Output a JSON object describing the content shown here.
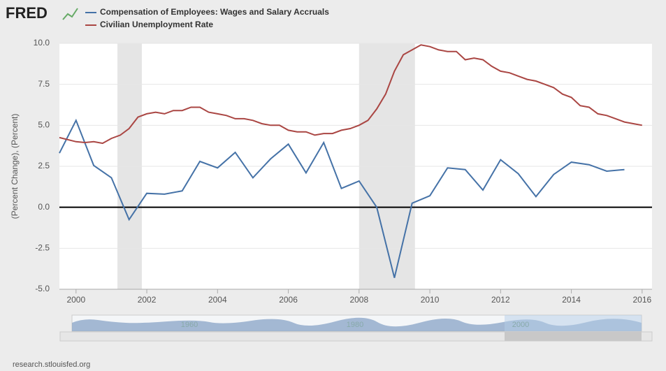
{
  "logo": "FRED",
  "footer": "research.stlouisfed.org",
  "navigator_labels": [
    "1960",
    "1980",
    "2000"
  ],
  "chart_data": {
    "type": "line",
    "y_label": "(Percent Change), (Percent)",
    "xlim": [
      1999.53,
      2016.28
    ],
    "xticks": [
      2000,
      2002,
      2004,
      2006,
      2008,
      2010,
      2012,
      2014,
      2016
    ],
    "ylim": [
      -5,
      10
    ],
    "yticks": [
      {
        "value": 10,
        "label": "10.0"
      },
      {
        "value": 7.5,
        "label": "7.5"
      },
      {
        "value": 5,
        "label": "5.0"
      },
      {
        "value": 2.5,
        "label": "2.5"
      },
      {
        "value": 0,
        "label": "0.0"
      },
      {
        "value": -2.5,
        "label": "-2.5"
      },
      {
        "value": -5,
        "label": "-5.0"
      }
    ],
    "plot_lines": [
      0
    ],
    "recessions": [
      [
        2001.17,
        2001.86
      ],
      [
        2008.0,
        2009.58
      ]
    ],
    "series": [
      {
        "name": "Compensation of Employees: Wages and Salary Accruals",
        "color": "#4572a7",
        "x": [
          1999.53,
          2000.0,
          2000.5,
          2001.0,
          2001.5,
          2002.0,
          2002.5,
          2003.0,
          2003.5,
          2004.0,
          2004.5,
          2005.0,
          2005.5,
          2006.0,
          2006.5,
          2007.0,
          2007.5,
          2008.0,
          2008.5,
          2009.0,
          2009.5,
          2010.0,
          2010.5,
          2011.0,
          2011.5,
          2012.0,
          2012.5,
          2013.0,
          2013.5,
          2014.0,
          2014.5,
          2015.0,
          2015.5
        ],
        "values": [
          3.3,
          5.3,
          2.55,
          1.8,
          -0.75,
          0.85,
          0.8,
          1.0,
          2.8,
          2.4,
          3.35,
          1.8,
          2.95,
          3.85,
          2.1,
          3.95,
          1.15,
          1.6,
          0.0,
          -4.3,
          0.25,
          0.7,
          2.4,
          2.3,
          1.05,
          2.9,
          2.05,
          0.65,
          2.0,
          2.75,
          2.6,
          2.2,
          2.3
        ]
      },
      {
        "name": "Civilian Unemployment Rate",
        "color": "#aa4643",
        "x": [
          1999.53,
          2000.0,
          2000.25,
          2000.5,
          2000.75,
          2001.0,
          2001.25,
          2001.5,
          2001.75,
          2002.0,
          2002.25,
          2002.5,
          2002.75,
          2003.0,
          2003.25,
          2003.5,
          2003.75,
          2004.0,
          2004.25,
          2004.5,
          2004.75,
          2005.0,
          2005.25,
          2005.5,
          2005.75,
          2006.0,
          2006.25,
          2006.5,
          2006.75,
          2007.0,
          2007.25,
          2007.5,
          2007.75,
          2008.0,
          2008.25,
          2008.5,
          2008.75,
          2009.0,
          2009.25,
          2009.5,
          2009.75,
          2010.0,
          2010.25,
          2010.5,
          2010.75,
          2011.0,
          2011.25,
          2011.5,
          2011.75,
          2012.0,
          2012.25,
          2012.5,
          2012.75,
          2013.0,
          2013.25,
          2013.5,
          2013.75,
          2014.0,
          2014.25,
          2014.5,
          2014.75,
          2015.0,
          2015.25,
          2015.5,
          2015.75,
          2016.0
        ],
        "values": [
          4.25,
          4.0,
          3.95,
          4.0,
          3.9,
          4.2,
          4.4,
          4.8,
          5.5,
          5.7,
          5.8,
          5.7,
          5.9,
          5.9,
          6.1,
          6.1,
          5.8,
          5.7,
          5.6,
          5.4,
          5.4,
          5.3,
          5.1,
          5.0,
          5.0,
          4.7,
          4.6,
          4.6,
          4.4,
          4.5,
          4.5,
          4.7,
          4.8,
          5.0,
          5.3,
          6.0,
          6.9,
          8.3,
          9.3,
          9.6,
          9.9,
          9.8,
          9.6,
          9.5,
          9.5,
          9.0,
          9.1,
          9.0,
          8.6,
          8.3,
          8.2,
          8.0,
          7.8,
          7.7,
          7.5,
          7.3,
          6.9,
          6.7,
          6.2,
          6.1,
          5.7,
          5.6,
          5.4,
          5.2,
          5.1,
          5.0
        ]
      }
    ]
  }
}
